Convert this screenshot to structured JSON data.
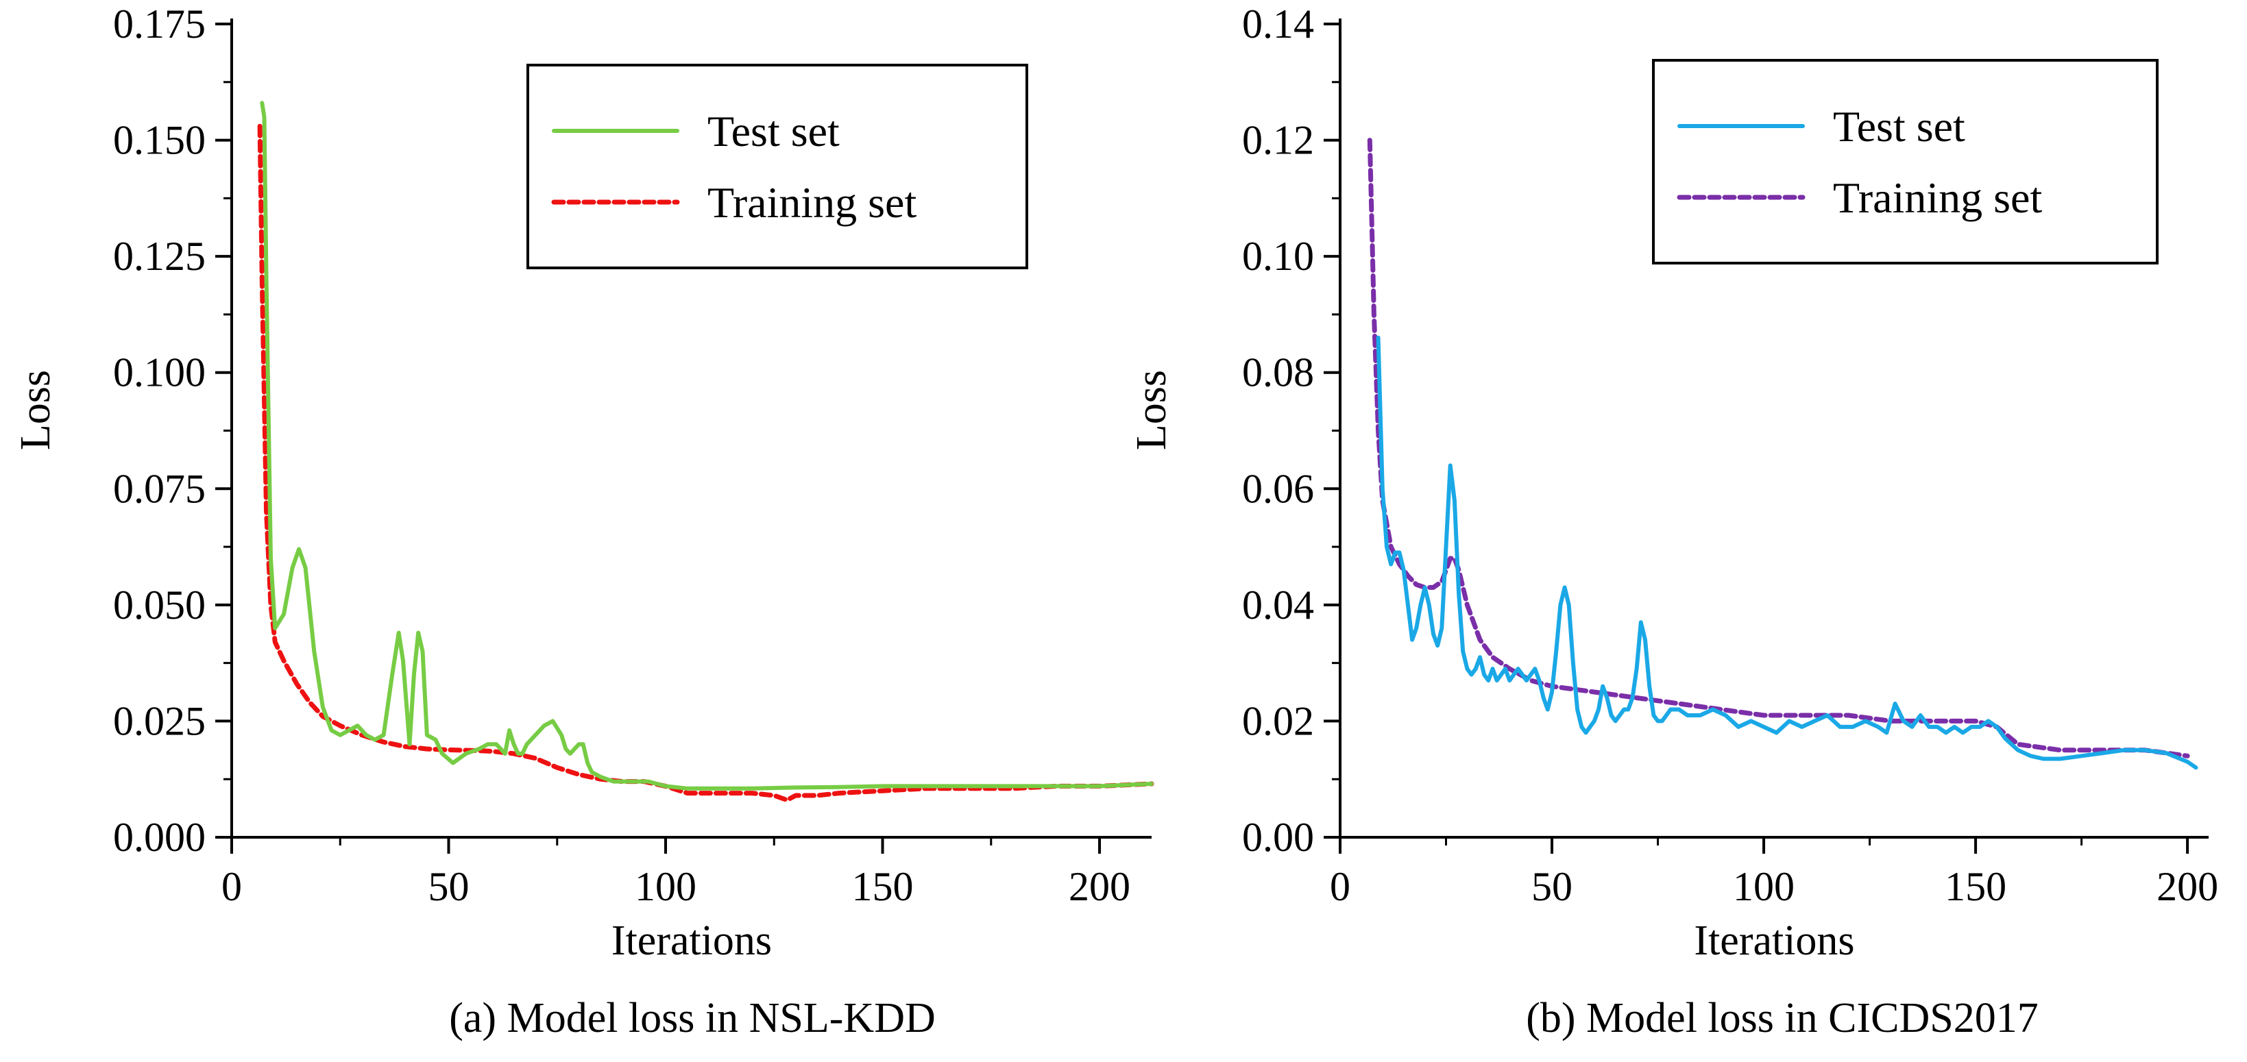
{
  "chart_data": [
    {
      "type": "line",
      "caption": "(a) Model loss in NSL-KDD",
      "xlabel": "Iterations",
      "ylabel": "Loss",
      "xlim": [
        0,
        212
      ],
      "ylim": [
        0.0,
        0.175
      ],
      "xticks": [
        "0",
        "50",
        "100",
        "150",
        "200"
      ],
      "xtick_values": [
        0,
        50,
        100,
        150,
        200
      ],
      "yticks": [
        "0.000",
        "0.025",
        "0.050",
        "0.075",
        "0.100",
        "0.125",
        "0.150",
        "0.175"
      ],
      "ytick_values": [
        0.0,
        0.025,
        0.05,
        0.075,
        0.1,
        0.125,
        0.15,
        0.175
      ],
      "legend_position": "top-right",
      "series": [
        {
          "name": "Test set",
          "style": "solid",
          "color": "#77cc44",
          "x": [
            7,
            7.5,
            8,
            9,
            10,
            12,
            14,
            15.5,
            17,
            19,
            21,
            23,
            25,
            27,
            29,
            31,
            33,
            35,
            37,
            38.5,
            39.5,
            41,
            42,
            43,
            44,
            45,
            47,
            48.5,
            51,
            54,
            57,
            59,
            61,
            62,
            63,
            64,
            65,
            66,
            67,
            68,
            70,
            72,
            74,
            76,
            77,
            78,
            79,
            80,
            81,
            82,
            83,
            85,
            88,
            92,
            96,
            100,
            105,
            110,
            120,
            130,
            140,
            150,
            160,
            170,
            180,
            190,
            200,
            212
          ],
          "y": [
            0.158,
            0.155,
            0.12,
            0.06,
            0.045,
            0.048,
            0.058,
            0.062,
            0.058,
            0.04,
            0.028,
            0.023,
            0.022,
            0.023,
            0.024,
            0.022,
            0.021,
            0.022,
            0.035,
            0.044,
            0.038,
            0.02,
            0.035,
            0.044,
            0.04,
            0.022,
            0.021,
            0.018,
            0.016,
            0.018,
            0.019,
            0.02,
            0.02,
            0.019,
            0.018,
            0.023,
            0.02,
            0.018,
            0.018,
            0.02,
            0.022,
            0.024,
            0.025,
            0.022,
            0.019,
            0.018,
            0.019,
            0.02,
            0.02,
            0.016,
            0.014,
            0.013,
            0.012,
            0.012,
            0.012,
            0.011,
            0.0105,
            0.0105,
            0.0105,
            0.0107,
            0.0108,
            0.011,
            0.011,
            0.011,
            0.011,
            0.011,
            0.011,
            0.0115
          ]
        },
        {
          "name": "Training set",
          "style": "dashed",
          "color": "#ee1111",
          "x": [
            6.5,
            7,
            8,
            9,
            10,
            12,
            15,
            18,
            21,
            25,
            30,
            35,
            40,
            45,
            50,
            55,
            60,
            65,
            70,
            75,
            80,
            85,
            90,
            95,
            100,
            105,
            110,
            115,
            120,
            125,
            128,
            130,
            135,
            140,
            150,
            160,
            170,
            180,
            190,
            200,
            212
          ],
          "y": [
            0.153,
            0.12,
            0.07,
            0.05,
            0.042,
            0.038,
            0.033,
            0.029,
            0.026,
            0.024,
            0.022,
            0.0205,
            0.0195,
            0.019,
            0.0188,
            0.0187,
            0.0185,
            0.018,
            0.017,
            0.015,
            0.0135,
            0.0125,
            0.012,
            0.012,
            0.011,
            0.0095,
            0.0095,
            0.0095,
            0.0095,
            0.009,
            0.008,
            0.009,
            0.009,
            0.0095,
            0.01,
            0.0105,
            0.0105,
            0.0105,
            0.011,
            0.011,
            0.0115
          ]
        }
      ]
    },
    {
      "type": "line",
      "caption": "(b) Model loss in CICDS2017",
      "xlabel": "Iterations",
      "ylabel": "Loss",
      "xlim": [
        0,
        205
      ],
      "ylim": [
        0.0,
        0.14
      ],
      "xticks": [
        "0",
        "50",
        "100",
        "150",
        "200"
      ],
      "xtick_values": [
        0,
        50,
        100,
        150,
        200
      ],
      "yticks": [
        "0.00",
        "0.02",
        "0.04",
        "0.06",
        "0.08",
        "0.10",
        "0.12",
        "0.14"
      ],
      "ytick_values": [
        0.0,
        0.02,
        0.04,
        0.06,
        0.08,
        0.1,
        0.12,
        0.14
      ],
      "legend_position": "top-right",
      "series": [
        {
          "name": "Test set",
          "style": "solid",
          "color": "#1aa8e6",
          "x": [
            9,
            10,
            11,
            12,
            13,
            14,
            15,
            16,
            17,
            18,
            19,
            20,
            21,
            22,
            23,
            24,
            25,
            26,
            27,
            28,
            29,
            30,
            31,
            32,
            33,
            34,
            35,
            36,
            37,
            38,
            39,
            40,
            41,
            42,
            43,
            44,
            45,
            46,
            47,
            48,
            49,
            50,
            51,
            52,
            53,
            54,
            55,
            56,
            57,
            58,
            59,
            60,
            61,
            62,
            63,
            64,
            65,
            66,
            67,
            68,
            69,
            70,
            71,
            72,
            73,
            74,
            75,
            76,
            77,
            78,
            80,
            82,
            85,
            88,
            91,
            94,
            97,
            100,
            103,
            106,
            109,
            112,
            115,
            118,
            121,
            124,
            127,
            129,
            131,
            133,
            135,
            137,
            139,
            141,
            143,
            145,
            147,
            149,
            151,
            153,
            155,
            157,
            160,
            163,
            166,
            170,
            175,
            180,
            185,
            190,
            195,
            200,
            202
          ],
          "y": [
            0.086,
            0.06,
            0.05,
            0.047,
            0.049,
            0.049,
            0.046,
            0.04,
            0.034,
            0.036,
            0.04,
            0.043,
            0.04,
            0.035,
            0.033,
            0.036,
            0.05,
            0.064,
            0.058,
            0.042,
            0.032,
            0.029,
            0.028,
            0.029,
            0.031,
            0.028,
            0.027,
            0.029,
            0.027,
            0.028,
            0.029,
            0.027,
            0.028,
            0.029,
            0.028,
            0.027,
            0.028,
            0.029,
            0.027,
            0.024,
            0.022,
            0.025,
            0.032,
            0.04,
            0.043,
            0.04,
            0.03,
            0.022,
            0.019,
            0.018,
            0.019,
            0.02,
            0.022,
            0.026,
            0.024,
            0.021,
            0.02,
            0.021,
            0.022,
            0.022,
            0.024,
            0.029,
            0.037,
            0.034,
            0.026,
            0.021,
            0.02,
            0.02,
            0.021,
            0.022,
            0.022,
            0.021,
            0.021,
            0.022,
            0.021,
            0.019,
            0.02,
            0.019,
            0.018,
            0.02,
            0.019,
            0.02,
            0.021,
            0.019,
            0.019,
            0.02,
            0.019,
            0.018,
            0.023,
            0.02,
            0.019,
            0.021,
            0.019,
            0.019,
            0.018,
            0.019,
            0.018,
            0.019,
            0.019,
            0.02,
            0.019,
            0.017,
            0.015,
            0.014,
            0.0135,
            0.0135,
            0.014,
            0.0145,
            0.015,
            0.015,
            0.0145,
            0.013,
            0.012
          ]
        },
        {
          "name": "Training set",
          "style": "dashed",
          "color": "#7a2ea8",
          "x": [
            7,
            7.5,
            8,
            9,
            10,
            12,
            14,
            16,
            18,
            20,
            22,
            24,
            25,
            26,
            27,
            28,
            30,
            33,
            36,
            40,
            45,
            50,
            60,
            70,
            80,
            90,
            100,
            110,
            120,
            130,
            140,
            150,
            155,
            160,
            170,
            180,
            190,
            200
          ],
          "y": [
            0.12,
            0.105,
            0.09,
            0.07,
            0.058,
            0.05,
            0.047,
            0.045,
            0.0435,
            0.043,
            0.043,
            0.044,
            0.046,
            0.048,
            0.048,
            0.046,
            0.04,
            0.034,
            0.031,
            0.029,
            0.027,
            0.026,
            0.025,
            0.024,
            0.023,
            0.022,
            0.021,
            0.021,
            0.021,
            0.02,
            0.02,
            0.02,
            0.019,
            0.016,
            0.015,
            0.015,
            0.015,
            0.014
          ]
        }
      ]
    }
  ]
}
